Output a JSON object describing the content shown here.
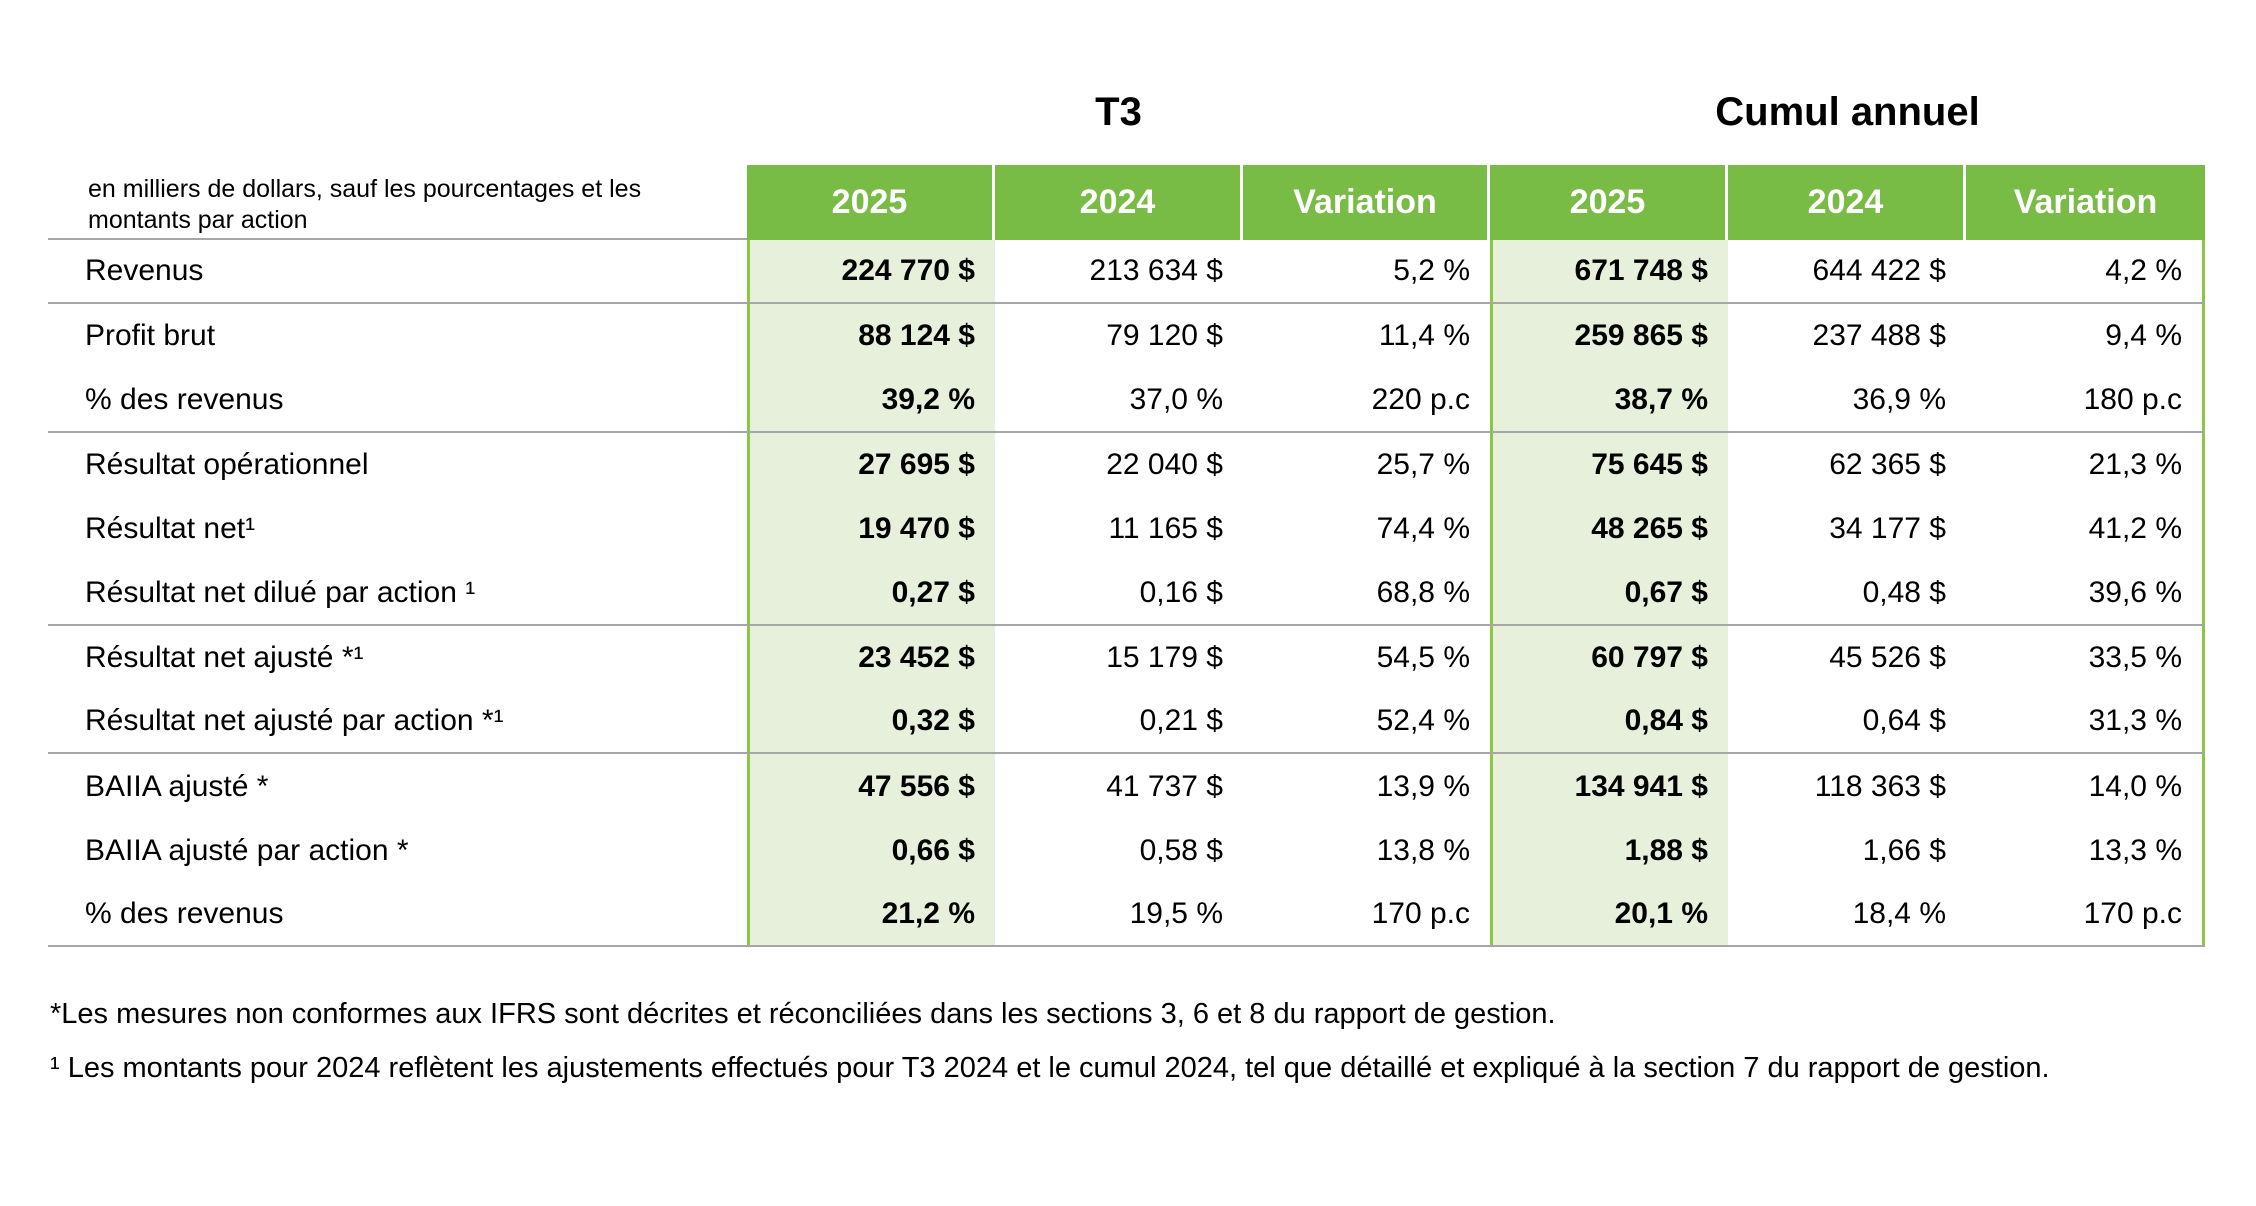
{
  "table": {
    "unit_note": "en milliers de dollars, sauf les pourcentages et les montants par action",
    "groups": [
      {
        "label": "T3"
      },
      {
        "label": "Cumul annuel"
      }
    ],
    "col_headers": [
      "2025",
      "2024",
      "Variation",
      "2025",
      "2024",
      "Variation"
    ],
    "accent_colors": {
      "header_green": "#79bc45",
      "column_light_green": "#e7f0db",
      "border_green": "#8dc63f",
      "separator_gray": "#a6a6a6"
    },
    "rows": [
      {
        "label": "Revenus",
        "values": [
          "224 770 $",
          "213 634 $",
          "5,2 %",
          "671 748 $",
          "644 422 $",
          "4,2 %"
        ],
        "group_end": true
      },
      {
        "label": "Profit brut",
        "values": [
          "88 124 $",
          "79 120 $",
          "11,4 %",
          "259 865 $",
          "237 488 $",
          "9,4 %"
        ],
        "group_end": false
      },
      {
        "label": "% des revenus",
        "values": [
          "39,2 %",
          "37,0 %",
          "220 p.c",
          "38,7 %",
          "36,9 %",
          "180 p.c"
        ],
        "group_end": true
      },
      {
        "label": "Résultat opérationnel",
        "values": [
          "27 695 $",
          "22 040 $",
          "25,7 %",
          "75 645 $",
          "62 365 $",
          "21,3 %"
        ],
        "group_end": false
      },
      {
        "label": "Résultat net¹",
        "values": [
          "19 470 $",
          "11 165 $",
          "74,4 %",
          "48 265 $",
          "34 177 $",
          "41,2 %"
        ],
        "group_end": false
      },
      {
        "label": "Résultat net dilué par action ¹",
        "values": [
          "0,27 $",
          "0,16 $",
          "68,8 %",
          "0,67 $",
          "0,48 $",
          "39,6 %"
        ],
        "group_end": true
      },
      {
        "label": "Résultat net ajusté *¹",
        "values": [
          "23 452 $",
          "15 179 $",
          "54,5 %",
          "60 797 $",
          "45 526 $",
          "33,5 %"
        ],
        "group_end": false
      },
      {
        "label": "Résultat net ajusté par action *¹",
        "values": [
          "0,32 $",
          "0,21 $",
          "52,4 %",
          "0,84 $",
          "0,64 $",
          "31,3 %"
        ],
        "group_end": true
      },
      {
        "label": "BAIIA ajusté *",
        "values": [
          "47 556 $",
          "41 737 $",
          "13,9 %",
          "134 941 $",
          "118 363 $",
          "14,0 %"
        ],
        "group_end": false
      },
      {
        "label": "BAIIA ajusté par action *",
        "values": [
          "0,66 $",
          "0,58 $",
          "13,8 %",
          "1,88 $",
          "1,66 $",
          "13,3 %"
        ],
        "group_end": false
      },
      {
        "label": "% des revenus",
        "values": [
          "21,2 %",
          "19,5 %",
          "170 p.c",
          "20,1 %",
          "18,4 %",
          "170 p.c"
        ],
        "group_end": true
      }
    ]
  },
  "footnotes": [
    "*Les mesures non conformes aux IFRS sont décrites et réconciliées dans les sections 3, 6 et 8 du rapport de gestion.",
    "¹ Les montants pour 2024 reflètent les ajustements effectués pour T3 2024 et le cumul 2024, tel que détaillé et expliqué à la section 7 du rapport de gestion."
  ]
}
